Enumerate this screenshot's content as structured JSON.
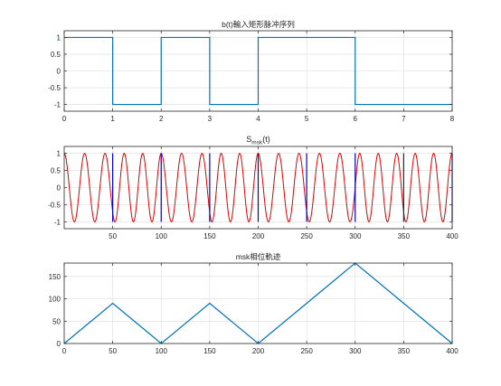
{
  "colors": {
    "figure_bg": "#ffffff",
    "axes_bg": "#ffffff",
    "axis": "#262626",
    "grid": "#dcdcdc",
    "blue": "#0072bd",
    "red": "#e00000",
    "marker": "#0000cc"
  },
  "chart_data": [
    {
      "type": "line",
      "title": "b(t)輸入矩形脉冲序列",
      "xlim": [
        0,
        8
      ],
      "ylim": [
        -1.2,
        1.2
      ],
      "xticks": [
        0,
        1,
        2,
        3,
        4,
        5,
        6,
        7,
        8
      ],
      "xtick_labels": [
        "0",
        "1",
        "2",
        "3",
        "4",
        "5",
        "6",
        "7",
        "8"
      ],
      "yticks": [
        1,
        0.5,
        0,
        -0.5,
        -1
      ],
      "ytick_labels": [
        "1",
        "0.5",
        "0",
        "-0.5",
        "-1"
      ],
      "grid": true,
      "series": [
        {
          "color": "#0072bd",
          "x": [
            0,
            1,
            1,
            2,
            2,
            3,
            3,
            4,
            4,
            6,
            6,
            8
          ],
          "y": [
            1,
            1,
            -1,
            -1,
            1,
            1,
            -1,
            -1,
            1,
            1,
            -1,
            -1
          ]
        }
      ]
    },
    {
      "type": "line",
      "title_main": "S",
      "title_sub": "msk",
      "title_tail": "(t)",
      "xlim": [
        0,
        400
      ],
      "ylim": [
        -1.2,
        1.2
      ],
      "xticks": [
        50,
        100,
        150,
        200,
        250,
        300,
        350,
        400
      ],
      "xtick_labels": [
        "50",
        "100",
        "150",
        "200",
        "250",
        "300",
        "350",
        "400"
      ],
      "yticks": [
        1,
        0.5,
        0,
        -0.5,
        -1
      ],
      "ytick_labels": [
        "1",
        "0.5",
        "0",
        "-0.5",
        "-1"
      ],
      "grid": true,
      "series": [
        {
          "color": "#e00000",
          "function": "cos",
          "bit_period": 50,
          "bits": [
            1,
            -1,
            1,
            -1,
            1,
            1,
            -1,
            -1
          ],
          "f_one": 0.0475,
          "f_zero": 0.0525,
          "phase_start": 0
        },
        {
          "color": "#0000cc",
          "markers_x": [
            50,
            100,
            150,
            200,
            250,
            300,
            350,
            400
          ],
          "marker_color": [
            "#0000cc",
            "#0000cc",
            "#0000cc",
            "#0000cc",
            "#0000cc",
            "#0000cc",
            "#262626",
            "#0000cc"
          ]
        }
      ]
    },
    {
      "type": "line",
      "title": "msk相位軌迹",
      "xlim": [
        0,
        400
      ],
      "ylim": [
        0,
        180
      ],
      "xticks": [
        0,
        50,
        100,
        150,
        200,
        250,
        300,
        350,
        400
      ],
      "xtick_labels": [
        "0",
        "50",
        "100",
        "150",
        "200",
        "250",
        "300",
        "350",
        "400"
      ],
      "yticks": [
        150,
        100,
        50,
        0
      ],
      "ytick_labels": [
        "150",
        "100",
        "50",
        "0"
      ],
      "grid": true,
      "series": [
        {
          "color": "#0072bd",
          "x": [
            0,
            50,
            100,
            150,
            200,
            250,
            300,
            350,
            400
          ],
          "y": [
            0,
            90,
            0,
            90,
            0,
            90,
            180,
            90,
            0
          ]
        }
      ]
    }
  ]
}
